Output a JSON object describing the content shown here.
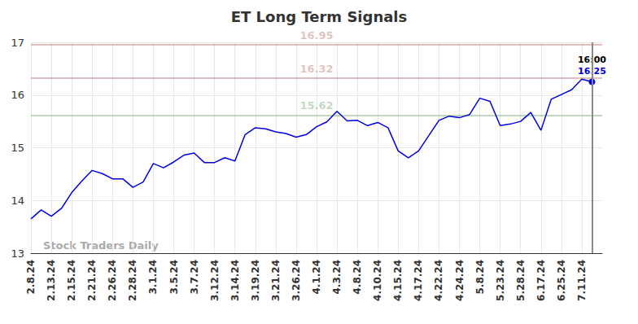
{
  "chart_data": {
    "type": "line",
    "title": "ET Long Term Signals",
    "watermark": "Stock Traders Daily",
    "categories": [
      "2.8.24",
      null,
      "2.13.24",
      null,
      "2.15.24",
      null,
      "2.21.24",
      null,
      "2.26.24",
      null,
      "2.28.24",
      null,
      "3.1.24",
      null,
      "3.5.24",
      null,
      "3.7.24",
      null,
      "3.12.24",
      null,
      "3.14.24",
      null,
      "3.19.24",
      null,
      "3.21.24",
      null,
      "3.26.24",
      null,
      "4.1.24",
      null,
      "4.3.24",
      null,
      "4.8.24",
      null,
      "4.10.24",
      null,
      "4.15.24",
      null,
      "4.17.24",
      null,
      "4.22.24",
      null,
      "4.24.24",
      null,
      "5.8.24",
      null,
      "5.23.24",
      null,
      "5.28.24",
      null,
      "6.17.24",
      null,
      "6.25.24",
      null,
      "7.11.24",
      null
    ],
    "values": [
      13.65,
      13.82,
      13.7,
      13.85,
      14.15,
      14.37,
      14.57,
      14.51,
      14.41,
      14.41,
      14.25,
      14.35,
      14.7,
      14.62,
      14.73,
      14.86,
      14.9,
      14.72,
      14.72,
      14.81,
      14.75,
      15.25,
      15.38,
      15.36,
      15.3,
      15.27,
      15.2,
      15.25,
      15.4,
      15.49,
      15.69,
      15.51,
      15.52,
      15.42,
      15.48,
      15.38,
      14.94,
      14.81,
      14.94,
      15.23,
      15.52,
      15.6,
      15.57,
      15.63,
      15.94,
      15.88,
      15.42,
      15.45,
      15.5,
      15.67,
      15.33,
      15.92,
      16.01,
      16.1,
      16.3,
      16.25
    ],
    "color": "#0000e6",
    "last_time": "16:00",
    "levels": [
      {
        "value": 16.95,
        "color": "#8b0000"
      },
      {
        "value": 16.32,
        "color": "#8b0000"
      },
      {
        "value": 15.62,
        "color": "#006400"
      }
    ],
    "ylim": [
      13,
      17
    ],
    "yticks": [
      13,
      14,
      15,
      16,
      17
    ],
    "grid": true
  }
}
